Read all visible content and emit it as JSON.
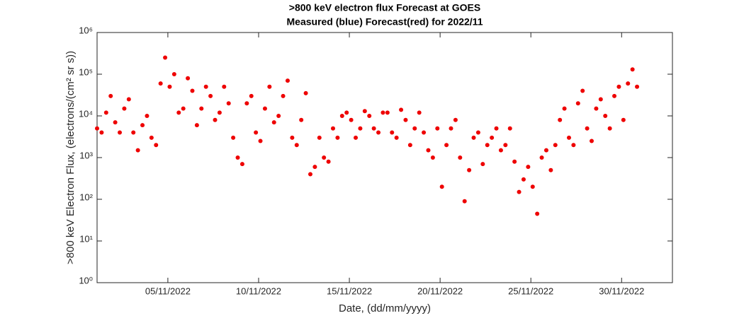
{
  "chart_data": {
    "type": "scatter",
    "title": ">800 keV electron flux Forecast at GOES",
    "subtitle": "Measured (blue) Forecast(red) for 2022/11",
    "xlabel": "Date, (dd/mm/yyyy)",
    "ylabel": ">800 keV Electron Flux, (electrons/(cm² sr s))",
    "log_y": true,
    "grid": false,
    "xlim": [
      1.1,
      32.8
    ],
    "xticks": [
      {
        "value": 5,
        "label": "05/11/2022"
      },
      {
        "value": 10,
        "label": "10/11/2022"
      },
      {
        "value": 15,
        "label": "15/11/2022"
      },
      {
        "value": 20,
        "label": "20/11/2022"
      },
      {
        "value": 25,
        "label": "25/11/2022"
      },
      {
        "value": 30,
        "label": "30/11/2022"
      }
    ],
    "ylim": [
      1,
      1000000
    ],
    "yticks": [
      {
        "value": 1,
        "label": "10⁰"
      },
      {
        "value": 10,
        "label": "10¹"
      },
      {
        "value": 100,
        "label": "10²"
      },
      {
        "value": 1000,
        "label": "10³"
      },
      {
        "value": 10000,
        "label": "10⁴"
      },
      {
        "value": 100000,
        "label": "10⁵"
      },
      {
        "value": 1000000,
        "label": "10⁶"
      }
    ],
    "x": [
      1.1,
      1.35,
      1.6,
      1.85,
      2.1,
      2.35,
      2.6,
      2.85,
      3.1,
      3.35,
      3.6,
      3.85,
      4.1,
      4.35,
      4.6,
      4.85,
      5.1,
      5.35,
      5.6,
      5.85,
      6.1,
      6.35,
      6.6,
      6.85,
      7.1,
      7.35,
      7.6,
      7.85,
      8.1,
      8.35,
      8.6,
      8.85,
      9.1,
      9.35,
      9.6,
      9.85,
      10.1,
      10.35,
      10.6,
      10.85,
      11.1,
      11.35,
      11.6,
      11.85,
      12.1,
      12.35,
      12.6,
      12.85,
      13.1,
      13.35,
      13.6,
      13.85,
      14.1,
      14.35,
      14.6,
      14.85,
      15.1,
      15.35,
      15.6,
      15.85,
      16.1,
      16.35,
      16.6,
      16.85,
      17.1,
      17.35,
      17.6,
      17.85,
      18.1,
      18.35,
      18.6,
      18.85,
      19.1,
      19.35,
      19.6,
      19.85,
      20.1,
      20.35,
      20.6,
      20.85,
      21.1,
      21.35,
      21.6,
      21.85,
      22.1,
      22.35,
      22.6,
      22.85,
      23.1,
      23.35,
      23.6,
      23.85,
      24.1,
      24.35,
      24.6,
      24.85,
      25.1,
      25.35,
      25.6,
      25.85,
      26.1,
      26.35,
      26.6,
      26.85,
      27.1,
      27.35,
      27.6,
      27.85,
      28.1,
      28.35,
      28.6,
      28.85,
      29.1,
      29.35,
      29.6,
      29.85,
      30.1,
      30.35,
      30.6,
      30.85
    ],
    "series": [
      {
        "color": "#ee0000",
        "values": [
          5000,
          4000,
          12000,
          30000,
          7000,
          4000,
          15000,
          25000,
          4000,
          1500,
          6000,
          10000,
          3000,
          2000,
          60000,
          250000,
          50000,
          100000,
          12000,
          15000,
          80000,
          40000,
          6000,
          15000,
          50000,
          30000,
          8000,
          12000,
          50000,
          20000,
          3000,
          1000,
          700,
          20000,
          30000,
          4000,
          2500,
          15000,
          50000,
          7000,
          10000,
          30000,
          70000,
          3000,
          2000,
          8000,
          35000,
          400,
          600,
          3000,
          1000,
          800,
          5000,
          3000,
          10000,
          12000,
          8000,
          3000,
          5000,
          13000,
          10000,
          5000,
          4000,
          12000,
          12000,
          4000,
          3000,
          14000,
          8000,
          2000,
          5000,
          12000,
          4000,
          1500,
          1000,
          5000,
          200,
          2000,
          5000,
          8000,
          1000,
          90,
          500,
          3000,
          4000,
          700,
          2000,
          3000,
          5000,
          1500,
          2000,
          5000,
          800,
          150,
          300,
          600,
          200,
          45,
          1000,
          1500,
          500,
          2000,
          8000,
          15000,
          3000,
          2000,
          20000,
          40000,
          5000,
          2500,
          15000,
          25000,
          10000,
          5000,
          30000,
          50000,
          8000,
          60000,
          130000,
          50000
        ]
      }
    ]
  }
}
